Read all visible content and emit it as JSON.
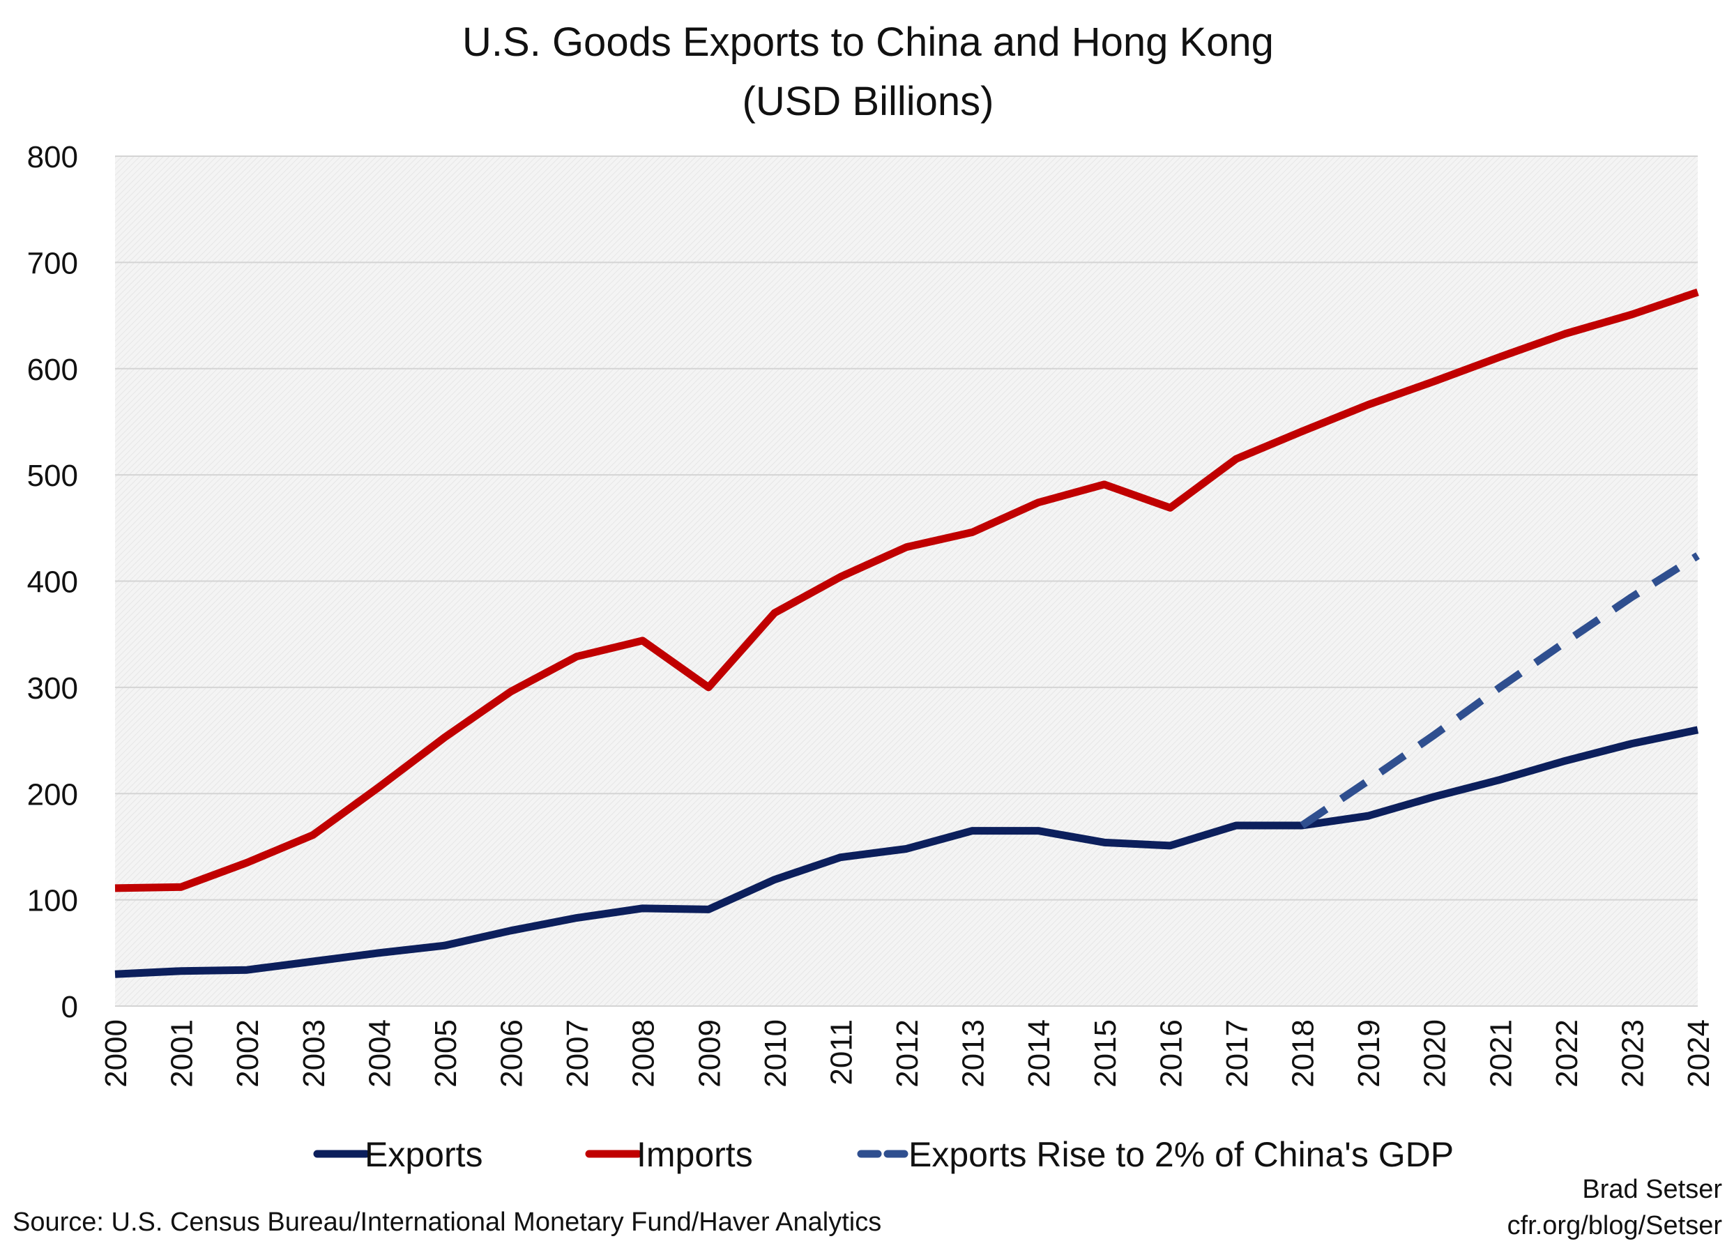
{
  "chart_data": {
    "type": "line",
    "title": "U.S. Goods Exports to China and Hong Kong",
    "subtitle": "(USD Billions)",
    "xlabel": "",
    "ylabel": "",
    "ylim": [
      0,
      800
    ],
    "yticks": [
      0,
      100,
      200,
      300,
      400,
      500,
      600,
      700,
      800
    ],
    "grid": true,
    "legend_position": "bottom",
    "categories": [
      "2000",
      "2001",
      "2002",
      "2003",
      "2004",
      "2005",
      "2006",
      "2007",
      "2008",
      "2009",
      "2010",
      "2011",
      "2012",
      "2013",
      "2014",
      "2015",
      "2016",
      "2017",
      "2018",
      "2019",
      "2020",
      "2021",
      "2022",
      "2023",
      "2024"
    ],
    "series": [
      {
        "name": "Exports",
        "color": "#0c1f5c",
        "style": "solid",
        "values": [
          30,
          33,
          34,
          42,
          50,
          57,
          71,
          83,
          92,
          91,
          119,
          140,
          148,
          165,
          165,
          154,
          151,
          170,
          170,
          179,
          197,
          213,
          231,
          247,
          260
        ]
      },
      {
        "name": "Imports",
        "color": "#c00000",
        "style": "solid",
        "values": [
          111,
          112,
          135,
          161,
          206,
          253,
          296,
          329,
          344,
          300,
          370,
          404,
          432,
          446,
          474,
          491,
          469,
          515,
          541,
          566,
          588,
          611,
          633,
          651,
          672
        ]
      },
      {
        "name": "Exports Rise to 2% of China's GDP",
        "color": "#2f4f8f",
        "style": "dashed",
        "values": [
          null,
          null,
          null,
          null,
          null,
          null,
          null,
          null,
          null,
          null,
          null,
          null,
          null,
          null,
          null,
          null,
          null,
          null,
          170,
          212,
          255,
          300,
          343,
          385,
          424
        ]
      }
    ]
  },
  "source": "Source: U.S. Census Bureau/International Monetary Fund/Haver Analytics",
  "credit": {
    "name": "Brad Setser",
    "url": "cfr.org/blog/Setser"
  }
}
